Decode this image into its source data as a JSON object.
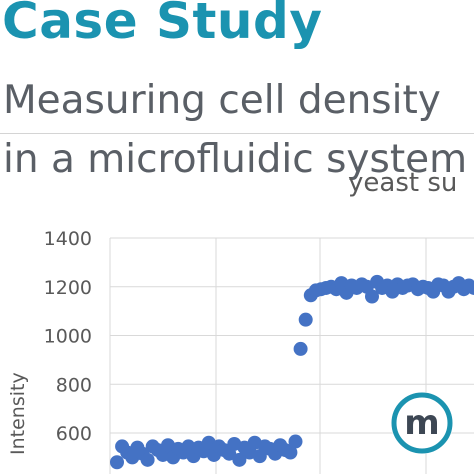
{
  "header": {
    "title": "Case Study",
    "subtitle_line1": "Measuring cell density",
    "subtitle_line2": "in a microfluidic system"
  },
  "colors": {
    "title": "#1B93B0",
    "subtitle": "#5A5F66",
    "divider": "#D4D4D4",
    "grid": "#D9D9D9",
    "axis_text": "#595959",
    "series": "#4472C4",
    "logo_ring": "#1B93B0",
    "logo_letter": "#3D4754"
  },
  "logo": {
    "icon": "m-circle-logo",
    "letter": "m"
  },
  "chart_data": {
    "type": "scatter",
    "title": "yeast su",
    "xlabel": "",
    "ylabel": "Intensity",
    "ylim": [
      500,
      1400
    ],
    "yticks": [
      600,
      800,
      1000,
      1200,
      1400
    ],
    "xlim": [
      0,
      70
    ],
    "grid": true,
    "series": [
      {
        "x": [
          0,
          1,
          2,
          3,
          4,
          5,
          6,
          7,
          8,
          9,
          10,
          11,
          12,
          13,
          14,
          15,
          16,
          17,
          18,
          19,
          20,
          21,
          22,
          23,
          24,
          25,
          26,
          27,
          28,
          29,
          30,
          31,
          32,
          33,
          34,
          35,
          36,
          37,
          38,
          39,
          40,
          41,
          42,
          43,
          44,
          45,
          46,
          47,
          48,
          49,
          50,
          51,
          52,
          53,
          54,
          55,
          56,
          57,
          58,
          59,
          60,
          61,
          62,
          63,
          64,
          65,
          66,
          67,
          68,
          69,
          70
        ],
        "y": [
          480,
          545,
          520,
          500,
          540,
          515,
          490,
          545,
          530,
          510,
          550,
          500,
          535,
          520,
          545,
          505,
          540,
          525,
          560,
          510,
          545,
          530,
          515,
          555,
          490,
          540,
          520,
          560,
          505,
          545,
          535,
          515,
          550,
          530,
          520,
          565,
          945,
          1065,
          1165,
          1185,
          1190,
          1195,
          1200,
          1190,
          1215,
          1175,
          1205,
          1195,
          1210,
          1200,
          1160,
          1220,
          1195,
          1205,
          1180,
          1210,
          1195,
          1205,
          1210,
          1190,
          1200,
          1195,
          1180,
          1210,
          1205,
          1180,
          1200,
          1215,
          1190,
          1205,
          1195
        ]
      }
    ]
  }
}
